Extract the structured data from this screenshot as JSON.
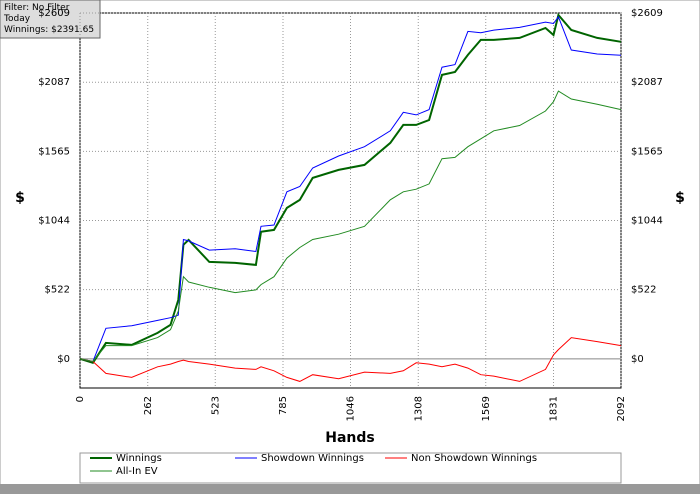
{
  "chart_data": {
    "type": "line",
    "annotations": [
      "Filter: No Filter",
      "Today",
      "Winnings: $2391.65"
    ],
    "xlabel": "Hands",
    "ylabel": "$",
    "x": [
      0,
      50,
      100,
      200,
      300,
      350,
      380,
      400,
      420,
      500,
      600,
      680,
      700,
      750,
      800,
      850,
      900,
      1000,
      1100,
      1200,
      1250,
      1300,
      1350,
      1400,
      1450,
      1500,
      1550,
      1600,
      1700,
      1800,
      1831,
      1850,
      1900,
      2000,
      2092
    ],
    "series": [
      {
        "name": "Winnings",
        "color": "#006400",
        "width": 2,
        "values": [
          0,
          -30,
          120,
          105,
          196,
          256,
          445,
          860,
          897,
          731,
          724,
          709,
          958,
          973,
          1139,
          1199,
          1365,
          1425,
          1463,
          1629,
          1765,
          1765,
          1802,
          2142,
          2164,
          2293,
          2406,
          2406,
          2421,
          2496,
          2443,
          2594,
          2481,
          2421,
          2392
        ]
      },
      {
        "name": "Showdown Winnings",
        "color": "#0000ff",
        "width": 1,
        "values": [
          0,
          -20,
          230,
          250,
          290,
          310,
          330,
          900,
          890,
          820,
          830,
          810,
          1000,
          1010,
          1260,
          1300,
          1440,
          1530,
          1600,
          1720,
          1860,
          1840,
          1880,
          2200,
          2220,
          2470,
          2460,
          2480,
          2500,
          2540,
          2530,
          2580,
          2330,
          2300,
          2290
        ]
      },
      {
        "name": "Non Showdown Winnings",
        "color": "#ff0000",
        "width": 1,
        "values": [
          0,
          -20,
          -110,
          -140,
          -60,
          -40,
          -20,
          -10,
          -20,
          -40,
          -70,
          -80,
          -60,
          -90,
          -140,
          -170,
          -120,
          -150,
          -100,
          -110,
          -90,
          -30,
          -40,
          -60,
          -40,
          -70,
          -120,
          -130,
          -170,
          -80,
          30,
          70,
          160,
          130,
          100
        ]
      },
      {
        "name": "All-In EV",
        "color": "#228b22",
        "width": 1,
        "values": [
          0,
          -20,
          100,
          100,
          160,
          220,
          360,
          620,
          580,
          540,
          500,
          520,
          560,
          620,
          760,
          840,
          900,
          940,
          1000,
          1200,
          1260,
          1280,
          1320,
          1510,
          1520,
          1600,
          1660,
          1720,
          1760,
          1870,
          1940,
          2020,
          1960,
          1920,
          1880
        ]
      }
    ],
    "xlim": [
      0,
      2092
    ],
    "xticks": [
      0,
      262,
      523,
      785,
      1046,
      1308,
      1569,
      1831,
      2092
    ],
    "ylim": [
      -220,
      2609
    ],
    "yticks": [
      {
        "value": 0,
        "label": "$0"
      },
      {
        "value": 522,
        "label": "$522"
      },
      {
        "value": 1044,
        "label": "$1044"
      },
      {
        "value": 1565,
        "label": "$1565"
      },
      {
        "value": 2087,
        "label": "$2087"
      },
      {
        "value": 2609,
        "label": "$2609"
      }
    ],
    "grid": true
  }
}
